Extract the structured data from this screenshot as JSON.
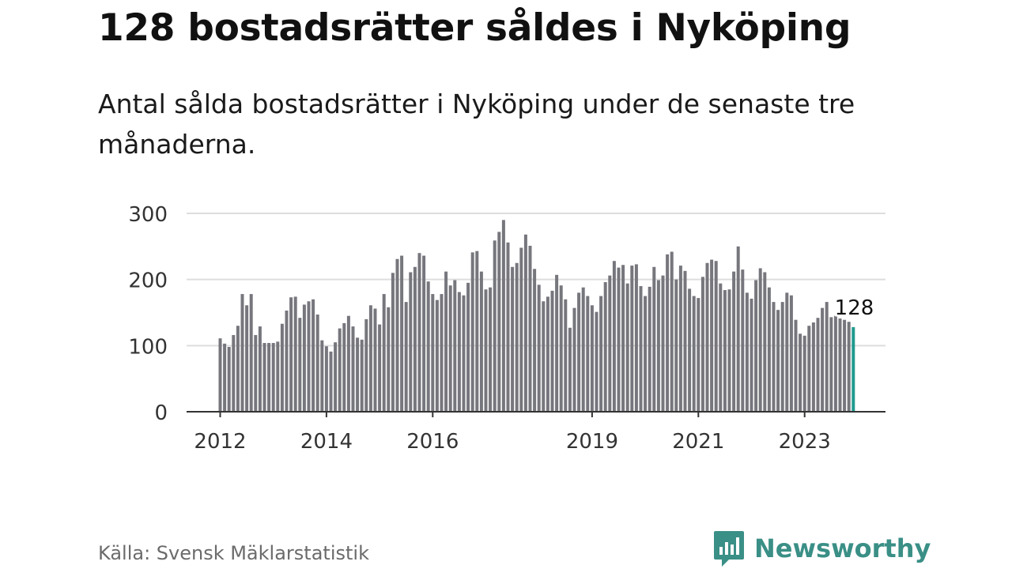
{
  "title": "128 bostadsrätter såldes i Nyköping",
  "subtitle": "Antal sålda bostadsrätter i Nyköping under de senaste tre månaderna.",
  "source": "Källa: Svensk Mäklarstatistik",
  "brand": {
    "name": "Newsworthy",
    "logo_icon": "bar-chart-speech-bubble-icon",
    "color": "#3a8f86"
  },
  "colors": {
    "bar": "#76767d",
    "highlight": "#1f9a8e",
    "grid": "#dddddd",
    "axis": "#333333"
  },
  "chart_data": {
    "type": "bar",
    "title": "128 bostadsrätter såldes i Nyköping",
    "subtitle": "Antal sålda bostadsrätter i Nyköping under de senaste tre månaderna.",
    "xlabel": "",
    "ylabel": "",
    "ylim": [
      0,
      300
    ],
    "yticks": [
      0,
      100,
      200,
      300
    ],
    "grid": true,
    "x_tick_labels": [
      {
        "label": "2012",
        "index": 0
      },
      {
        "label": "2014",
        "index": 24
      },
      {
        "label": "2016",
        "index": 48
      },
      {
        "label": "2019",
        "index": 84
      },
      {
        "label": "2021",
        "index": 108
      },
      {
        "label": "2023",
        "index": 132
      }
    ],
    "start": "2012-01",
    "highlight_index": 143,
    "highlight_label": "128",
    "values": [
      111,
      103,
      98,
      116,
      130,
      178,
      161,
      178,
      116,
      129,
      104,
      104,
      104,
      106,
      133,
      153,
      173,
      174,
      142,
      162,
      167,
      170,
      147,
      108,
      99,
      91,
      105,
      126,
      134,
      145,
      129,
      112,
      109,
      140,
      161,
      156,
      132,
      178,
      158,
      210,
      231,
      236,
      166,
      211,
      219,
      240,
      236,
      197,
      178,
      169,
      178,
      212,
      191,
      199,
      181,
      176,
      195,
      241,
      243,
      212,
      185,
      188,
      259,
      272,
      290,
      256,
      219,
      225,
      248,
      268,
      251,
      216,
      192,
      167,
      174,
      183,
      207,
      191,
      170,
      127,
      157,
      180,
      188,
      175,
      161,
      151,
      175,
      196,
      206,
      228,
      218,
      222,
      194,
      221,
      223,
      190,
      175,
      189,
      219,
      199,
      206,
      238,
      242,
      200,
      221,
      213,
      186,
      175,
      172,
      204,
      225,
      230,
      228,
      194,
      184,
      185,
      212,
      250,
      215,
      180,
      171,
      199,
      217,
      211,
      188,
      166,
      154,
      166,
      180,
      176,
      139,
      118,
      115,
      130,
      135,
      142,
      157,
      166,
      143,
      145,
      141,
      139,
      136,
      128
    ]
  }
}
